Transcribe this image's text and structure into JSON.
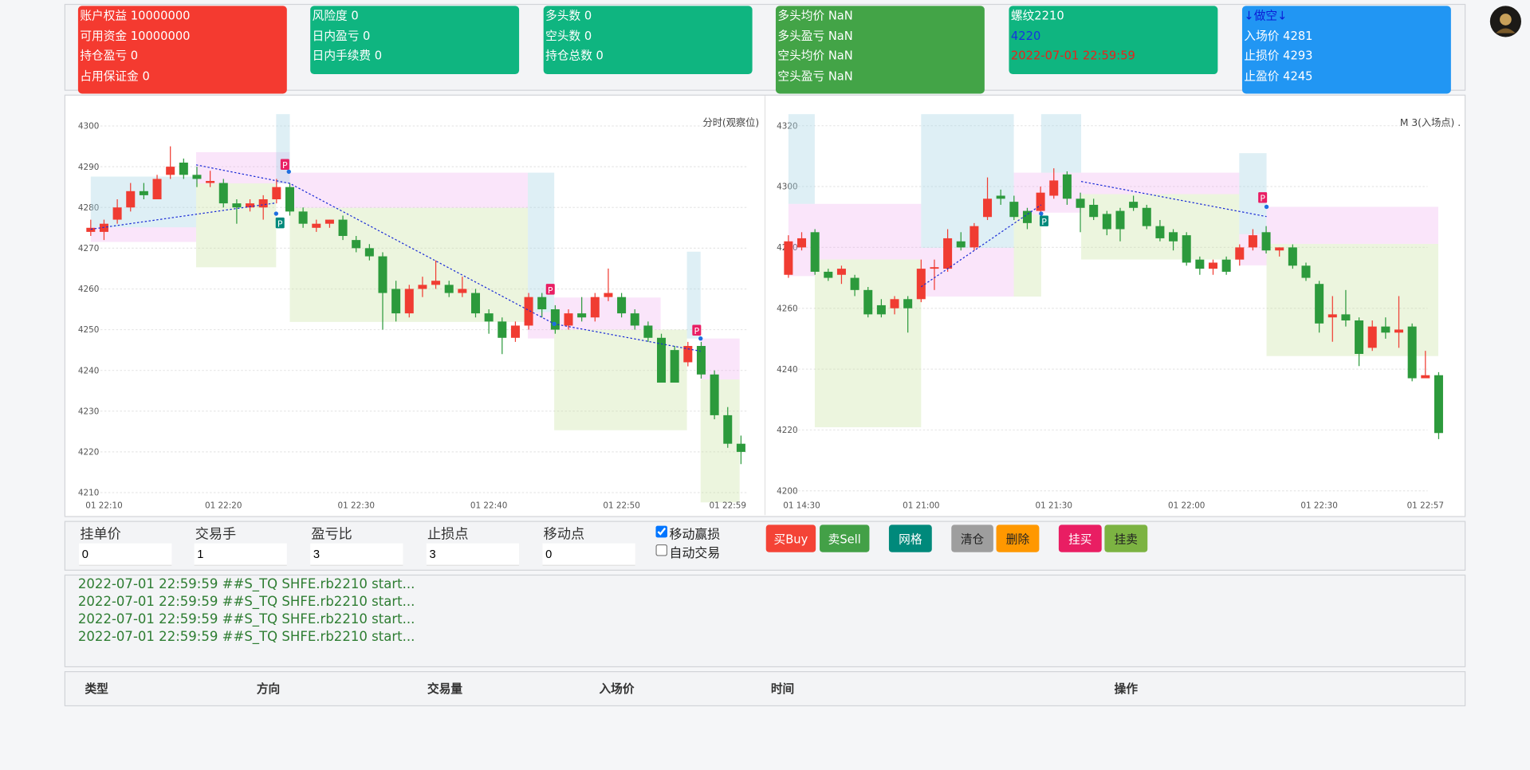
{
  "account_cards": [
    {
      "color": "#f43a30",
      "lines": [
        "账户权益 10000000",
        "可用资金 10000000",
        "持仓盈亏 0",
        "占用保证金 0"
      ],
      "line_colors": [
        "#ffffff",
        "#ffffff",
        "#ffffff",
        "#ffffff"
      ]
    },
    {
      "color": "#0fb580",
      "lines": [
        "风险度 0",
        "日内盈亏 0",
        "日内手续费 0"
      ],
      "line_colors": [
        "#ffffff",
        "#ffffff",
        "#ffffff"
      ]
    },
    {
      "color": "#0fb580",
      "lines": [
        "多头数 0",
        "空头数 0",
        "持仓总数 0"
      ],
      "line_colors": [
        "#ffffff",
        "#ffffff",
        "#ffffff"
      ]
    },
    {
      "color": "#43a447",
      "lines": [
        "多头均价 NaN",
        "多头盈亏 NaN",
        "空头均价 NaN",
        "空头盈亏 NaN"
      ],
      "line_colors": [
        "#ffffff",
        "#ffffff",
        "#ffffff",
        "#ffffff"
      ]
    },
    {
      "color": "#0fb580",
      "lines": [
        "螺纹2210",
        "4220",
        "2022-07-01 22:59:59"
      ],
      "line_colors": [
        "#ffffff",
        "#1533e0",
        "#e8221b"
      ]
    },
    {
      "color": "#2196f3",
      "lines": [
        "↓做空↓",
        "入场价 4281",
        "止损价 4293",
        "止盈价 4245"
      ],
      "line_colors": [
        "#0b1fd6",
        "#ffffff",
        "#ffffff",
        "#ffffff"
      ]
    }
  ],
  "chart_data": [
    {
      "type": "candlestick",
      "corner_label": "分时(观察位)",
      "marker_label": "P",
      "up_color": "#f03c32",
      "down_color": "#2c9a3c",
      "grid": true,
      "categories": [
        null,
        "01 22:10",
        null,
        null,
        null,
        null,
        null,
        null,
        null,
        null,
        "01 22:20",
        null,
        null,
        null,
        null,
        null,
        null,
        null,
        null,
        null,
        "01 22:30",
        null,
        null,
        null,
        null,
        null,
        null,
        null,
        null,
        null,
        "01 22:40",
        null,
        null,
        null,
        null,
        null,
        null,
        null,
        null,
        null,
        "01 22:50",
        null,
        null,
        null,
        null,
        null,
        null,
        null,
        "01 22:59",
        null
      ],
      "open": [
        4274,
        4274,
        4277,
        4280,
        4284,
        4282,
        4288,
        4291,
        4288,
        4286,
        4286,
        4281,
        4280,
        4280,
        4282,
        4285,
        4279,
        4275,
        4276,
        4277,
        4272,
        4270,
        4268,
        4260,
        4254,
        4260,
        4261,
        4261,
        4259,
        4259,
        4254,
        4252,
        4248,
        4251,
        4258,
        4255,
        4251,
        4254,
        4253,
        4258,
        4258,
        4254,
        4251,
        4248,
        4245,
        4242,
        4246,
        4239,
        4229,
        4222
      ],
      "high": [
        4277,
        4277,
        4282,
        4286,
        4286,
        4288,
        4295,
        4292,
        4290,
        4289,
        4287,
        4282,
        4282,
        4283,
        4287,
        4286,
        4280,
        4277,
        4277,
        4278,
        4273,
        4271,
        4269,
        4262,
        4261,
        4263,
        4267,
        4262,
        4263,
        4260,
        4255,
        4253,
        4252,
        4259,
        4259,
        4256,
        4255,
        4258,
        4259,
        4265,
        4259,
        4255,
        4252,
        4249,
        4246,
        4247,
        4247,
        4240,
        4231,
        4224
      ],
      "low": [
        4273,
        4272,
        4276,
        4279,
        4282,
        4282,
        4287,
        4287,
        4285,
        4285,
        4280,
        4276,
        4279,
        4277,
        4281,
        4278,
        4275,
        4274,
        4275,
        4272,
        4269,
        4267,
        4250,
        4252,
        4253,
        4258,
        4260,
        4258,
        4258,
        4253,
        4249,
        4244,
        4247,
        4250,
        4253,
        4249,
        4250,
        4252,
        4252,
        4257,
        4253,
        4250,
        4247,
        4237,
        4237,
        4241,
        4238,
        4228,
        4221,
        4217
      ],
      "close": [
        4275,
        4276,
        4280,
        4284,
        4283,
        4287,
        4290,
        4288,
        4287,
        4286.5,
        4281,
        4280,
        4281,
        4282,
        4285,
        4279,
        4276,
        4276,
        4277,
        4273,
        4270,
        4268,
        4259,
        4254,
        4260,
        4261,
        4262,
        4259,
        4260,
        4254,
        4252,
        4248,
        4251,
        4258,
        4255,
        4250,
        4254,
        4253,
        4258,
        4259,
        4254,
        4251,
        4248,
        4237,
        4237,
        4246,
        4239,
        4229,
        4222,
        4220
      ],
      "ylim": [
        4207.6,
        4302.9
      ],
      "yticks": [
        4210,
        4220,
        4230,
        4240,
        4250,
        4260,
        4270,
        4280,
        4290,
        4300
      ]
    },
    {
      "type": "candlestick",
      "corner_label": "M 3(入场点) .",
      "marker_label": "P",
      "up_color": "#f03c32",
      "down_color": "#2c9a3c",
      "grid": true,
      "categories": [
        null,
        "01 14:30",
        null,
        null,
        null,
        null,
        null,
        null,
        null,
        null,
        "01 21:00",
        null,
        null,
        null,
        null,
        null,
        null,
        null,
        null,
        null,
        "01 21:30",
        null,
        null,
        null,
        null,
        null,
        null,
        null,
        null,
        null,
        "01 22:00",
        null,
        null,
        null,
        null,
        null,
        null,
        null,
        null,
        null,
        "01 22:30",
        null,
        null,
        null,
        null,
        null,
        null,
        null,
        "01 22:57",
        null
      ],
      "open": [
        4271,
        4280,
        4285,
        4272,
        4271,
        4270,
        4266,
        4261,
        4260,
        4263,
        4263,
        4273,
        4273,
        4282,
        4280,
        4290,
        4297,
        4295,
        4292,
        4292,
        4297,
        4304,
        4296,
        4294,
        4291,
        4292,
        4295,
        4293,
        4287,
        4285,
        4284,
        4276,
        4273,
        4276,
        4276,
        4280,
        4285,
        4279,
        4280,
        4274,
        4268,
        4257,
        4258,
        4256,
        4247,
        4254,
        4252,
        4254,
        4237,
        4238
      ],
      "high": [
        4284,
        4285,
        4286,
        4273,
        4274,
        4271,
        4267,
        4263,
        4264,
        4264,
        4276,
        4276,
        4286,
        4285,
        4288,
        4303,
        4299,
        4297,
        4293,
        4300,
        4306,
        4305,
        4298,
        4296,
        4292,
        4293,
        4297,
        4294,
        4289,
        4286,
        4285,
        4277,
        4276,
        4277,
        4281,
        4286,
        4287,
        4280,
        4281,
        4275,
        4269,
        4264,
        4266,
        4257,
        4256,
        4257,
        4264,
        4255,
        4246,
        4239
      ],
      "low": [
        4270,
        4279,
        4271,
        4269,
        4268,
        4264,
        4257,
        4257,
        4258,
        4252,
        4262,
        4266,
        4272,
        4279,
        4279,
        4289,
        4294,
        4289,
        4286,
        4291,
        4296,
        4294,
        4285,
        4289,
        4284,
        4282,
        4292,
        4286,
        4282,
        4279,
        4274,
        4271,
        4271,
        4271,
        4274,
        4279,
        4278,
        4277,
        4273,
        4269,
        4252,
        4249,
        4254,
        4241,
        4246,
        4250,
        4247,
        4236,
        4237,
        4217
      ],
      "close": [
        4282,
        4283,
        4272,
        4270,
        4273,
        4266,
        4258,
        4258,
        4263,
        4260,
        4273,
        4273.5,
        4283,
        4280,
        4287,
        4296,
        4296,
        4290,
        4288,
        4298,
        4302,
        4296,
        4293,
        4290,
        4286,
        4286,
        4293,
        4287,
        4283,
        4282,
        4275,
        4273,
        4275,
        4272,
        4280,
        4284,
        4279,
        4280,
        4274,
        4270,
        4255,
        4258,
        4256,
        4245,
        4254,
        4252,
        4253,
        4237,
        4238,
        4219
      ],
      "ylim": [
        4196.2,
        4323.8
      ],
      "yticks": [
        4200,
        4220,
        4240,
        4260,
        4280,
        4300,
        4320
      ]
    }
  ],
  "order_form": {
    "fields": [
      {
        "label": "挂单价",
        "value": "0"
      },
      {
        "label": "交易手",
        "value": "1"
      },
      {
        "label": "盈亏比",
        "value": "3"
      },
      {
        "label": "止损点",
        "value": "3"
      },
      {
        "label": "移动点",
        "value": "0"
      }
    ],
    "checkboxes": [
      {
        "label": "移动赢损",
        "checked": true
      },
      {
        "label": "自动交易",
        "checked": false
      }
    ],
    "buttons": [
      {
        "label": "买Buy",
        "color": "#f44336",
        "text_color": "#ffffff"
      },
      {
        "label": "卖Sell",
        "color": "#43a047",
        "text_color": "#ffffff"
      },
      {
        "label": "网格",
        "color": "#00897b",
        "text_color": "#ffffff"
      },
      {
        "label": "清仓",
        "color": "#9e9e9e",
        "text_color": "#222222"
      },
      {
        "label": "删除",
        "color": "#ff9800",
        "text_color": "#222222"
      },
      {
        "label": "挂买",
        "color": "#e91e63",
        "text_color": "#ffffff"
      },
      {
        "label": "挂卖",
        "color": "#7cb342",
        "text_color": "#222222"
      }
    ]
  },
  "log": [
    "2022-07-01 22:59:59 ##S_TQ SHFE.rb2210 start...",
    "2022-07-01 22:59:59 ##S_TQ SHFE.rb2210 start...",
    "2022-07-01 22:59:59 ##S_TQ SHFE.rb2210 start...",
    "2022-07-01 22:59:59 ##S_TQ SHFE.rb2210 start..."
  ],
  "table": {
    "headers": [
      "类型",
      "方向",
      "交易量",
      "入场价",
      "时间",
      "操作"
    ]
  }
}
